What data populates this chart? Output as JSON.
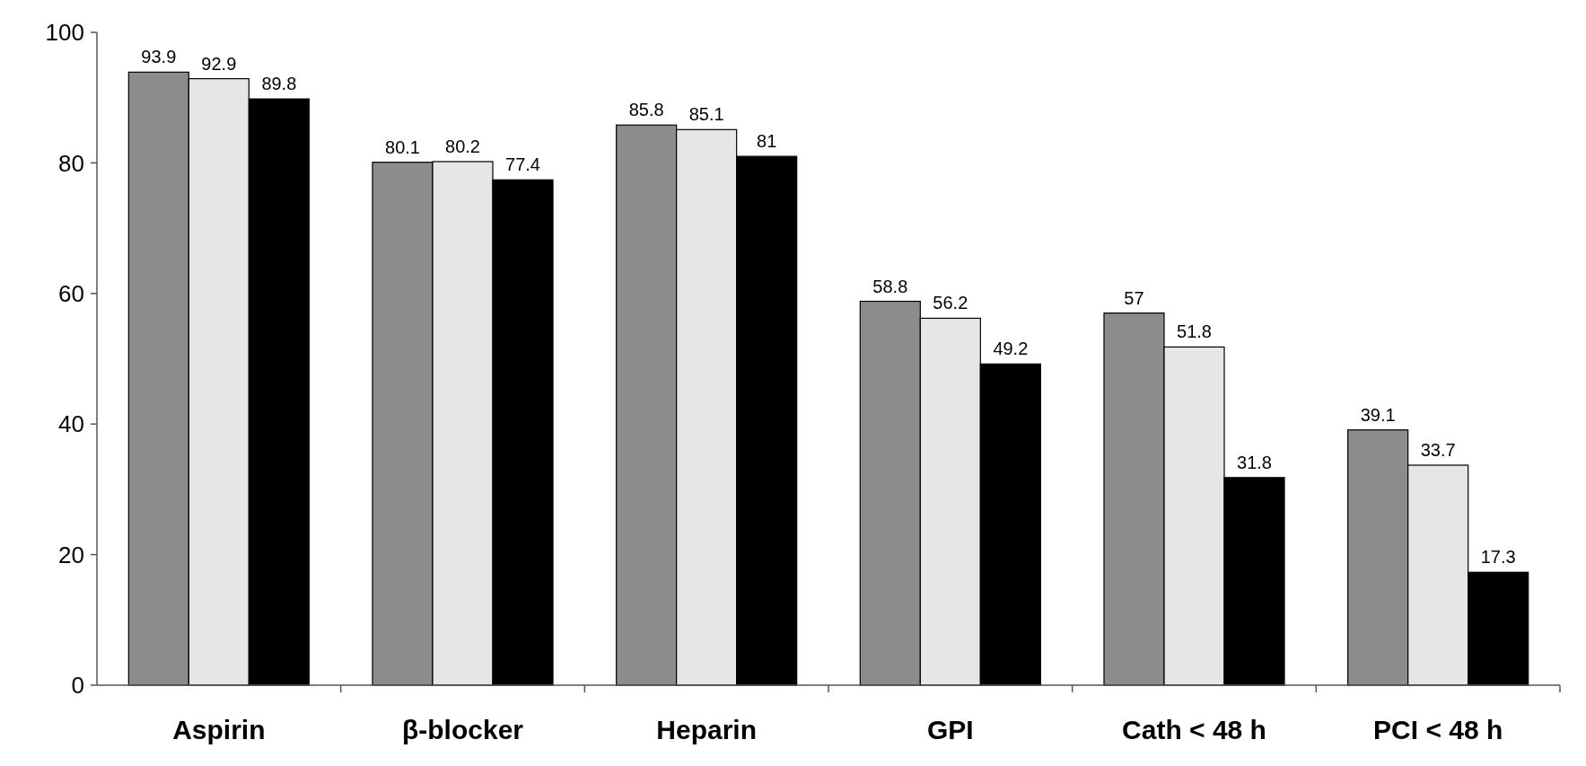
{
  "chart_data": {
    "type": "bar",
    "categories": [
      "Aspirin",
      "β-blocker",
      "Heparin",
      "GPI",
      "Cath < 48 h",
      "PCI < 48 h"
    ],
    "series": [
      {
        "color": "#8c8c8c",
        "values": [
          93.9,
          80.1,
          85.8,
          58.8,
          57,
          39.1
        ]
      },
      {
        "color": "#e6e6e6",
        "values": [
          92.9,
          80.2,
          85.1,
          56.2,
          51.8,
          33.7
        ]
      },
      {
        "color": "#000000",
        "values": [
          89.8,
          77.4,
          81,
          49.2,
          31.8,
          17.3
        ]
      }
    ],
    "ylim": [
      0,
      100
    ],
    "yticks": [
      0,
      20,
      40,
      60,
      80,
      100
    ],
    "grid": false,
    "data_labels": true
  }
}
